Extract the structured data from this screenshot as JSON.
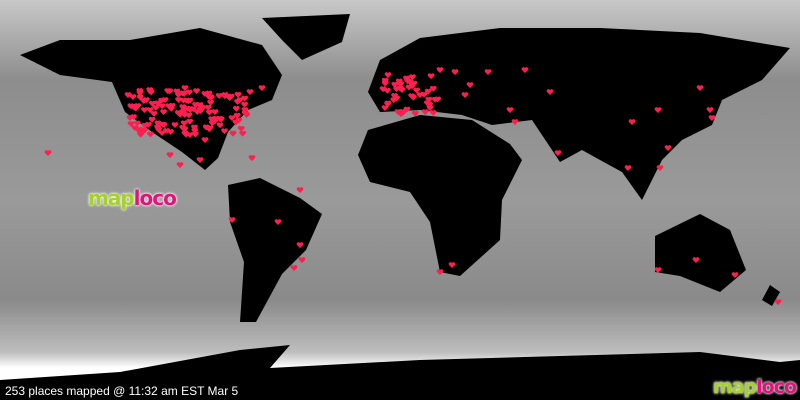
{
  "status_text": "253 places mapped @ 11:32 am EST Mar 5",
  "logo": {
    "part1": "map",
    "part2": "loco"
  },
  "colors": {
    "land": "#000000",
    "ocean": "#9a9a9a",
    "marker": "#ff1f4f",
    "logo_green": "#a5d12a",
    "logo_pink": "#e0157a"
  },
  "marker_icon": "heart-icon"
}
